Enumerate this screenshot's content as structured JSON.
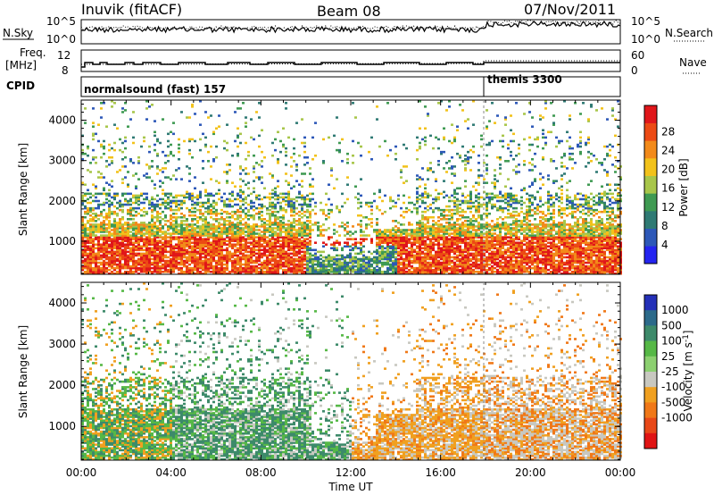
{
  "header": {
    "station": "Inuvik (fitACF)",
    "beam": "Beam 08",
    "date": "07/Nov/2011"
  },
  "strip": {
    "nsky_label": "N.Sky",
    "nsky_ticks": [
      "10^5",
      "10^0"
    ],
    "nsearch_label": "N.Search",
    "nsearch_ticks": [
      "10^5",
      "10^0"
    ],
    "freq_label_1": "Freq.",
    "freq_label_2": "[MHz]",
    "freq_ticks": [
      "12",
      "8"
    ],
    "nave_label": "Nave",
    "nave_ticks": [
      "60",
      "0"
    ],
    "cpid_label": "CPID",
    "cpid_segments": [
      "normalsound (fast) 157",
      "themis 3300"
    ]
  },
  "chart_data": [
    {
      "type": "heatmap",
      "panel": "power",
      "ylabel": "Slant Range [km]",
      "xlabel": "",
      "yticks": [
        1000,
        2000,
        3000,
        4000
      ],
      "ylim": [
        180,
        4500
      ],
      "xticks": [
        "00:00",
        "04:00",
        "08:00",
        "12:00",
        "16:00",
        "20:00",
        "00:00"
      ],
      "colorbar_label": "Power [dB]",
      "colorbar_ticks": [
        "4",
        "8",
        "12",
        "16",
        "20",
        "24",
        "28"
      ],
      "colorbar_colors": [
        "#2424f0",
        "#2d58b8",
        "#2f7a74",
        "#3f9a52",
        "#a8c64a",
        "#f2c21b",
        "#f28a1a",
        "#ec4a14",
        "#e0161a"
      ]
    },
    {
      "type": "heatmap",
      "panel": "velocity",
      "ylabel": "Slant Range [km]",
      "xlabel": "Time UT",
      "yticks": [
        1000,
        2000,
        3000,
        4000
      ],
      "ylim": [
        180,
        4500
      ],
      "xticks": [
        "00:00",
        "04:00",
        "08:00",
        "12:00",
        "16:00",
        "20:00",
        "00:00"
      ],
      "colorbar_label": "Velocity [m s^-1]",
      "colorbar_ticks": [
        "1000",
        "500",
        "100",
        "25",
        "-25",
        "-100",
        "-500",
        "-1000"
      ],
      "colorbar_colors": [
        "#2430b8",
        "#2c6a8a",
        "#3d8a6a",
        "#56b846",
        "#8cd070",
        "#c8c8c0",
        "#f0a020",
        "#f07818",
        "#e84818",
        "#e01414"
      ]
    }
  ]
}
